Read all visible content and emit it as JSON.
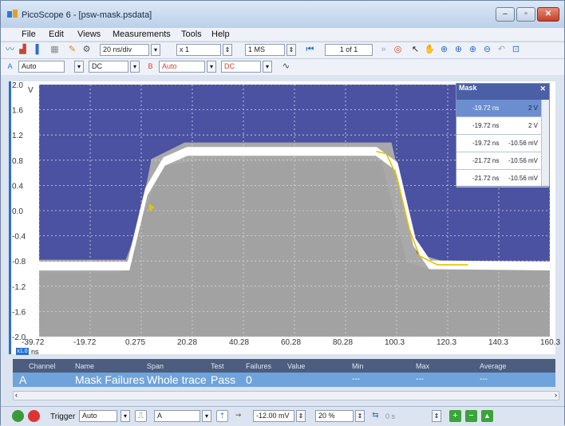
{
  "window": {
    "title": "PicoScope 6 - [psw-mask.psdata]",
    "controls": [
      "–",
      "▫",
      "✕"
    ]
  },
  "menu": [
    "File",
    "Edit",
    "Views",
    "Measurements",
    "Tools",
    "Help"
  ],
  "toolbar1": {
    "timebase": "20 ns/div",
    "multiplier": "x 1",
    "samples": "1 MS",
    "page": "1 of 1"
  },
  "toolbar2": {
    "channel_a_range": "Auto",
    "channel_a_coupling": "DC",
    "channel_b_range": "Auto",
    "channel_b_coupling": "DC"
  },
  "scope": {
    "y_unit": "V",
    "y_ticks": [
      "2.0",
      "1.6",
      "1.2",
      "0.8",
      "0.4",
      "0.0",
      "-0.4",
      "-0.8",
      "-1.2",
      "-1.6",
      "-2.0"
    ],
    "x_ticks": [
      "-39.72",
      "-19.72",
      "0.275",
      "20.28",
      "40.28",
      "60.28",
      "80.28",
      "100.3",
      "120.3",
      "140.3",
      "160.3"
    ],
    "x_zoom": "x1.0",
    "x_unit": "ns",
    "colors": {
      "mask_region": "#4b52a2",
      "plot_background": "#a9a9a9",
      "trace": "#ffffff",
      "failure_trace": "#e2c300",
      "grid": "#d7d7d7"
    }
  },
  "mask_panel": {
    "title": "Mask",
    "rows": [
      {
        "time": "-19.72 ns",
        "value": "2 V"
      },
      {
        "time": "-19.72 ns",
        "value": "2 V"
      },
      {
        "time": "-19.72 ns",
        "value": "-10.56 mV"
      },
      {
        "time": "-21.72 ns",
        "value": "-10.56 mV"
      },
      {
        "time": "-21.72 ns",
        "value": "-10.56 mV"
      }
    ]
  },
  "measurements": {
    "headers": [
      "Channel",
      "Name",
      "Span",
      "Test",
      "Failures",
      "Value",
      "Min",
      "Max",
      "Average"
    ],
    "row": {
      "channel": "A",
      "name": "Mask Failures",
      "span": "Whole trace",
      "test": "Pass",
      "failures": "0",
      "value": "",
      "min": "---",
      "max": "---",
      "average": "---"
    }
  },
  "status": {
    "trigger_label": "Trigger",
    "trigger_mode": "Auto",
    "trigger_channel": "A",
    "threshold": "-12.00 mV",
    "pre_trigger": "20 %",
    "delay": "0 s"
  }
}
